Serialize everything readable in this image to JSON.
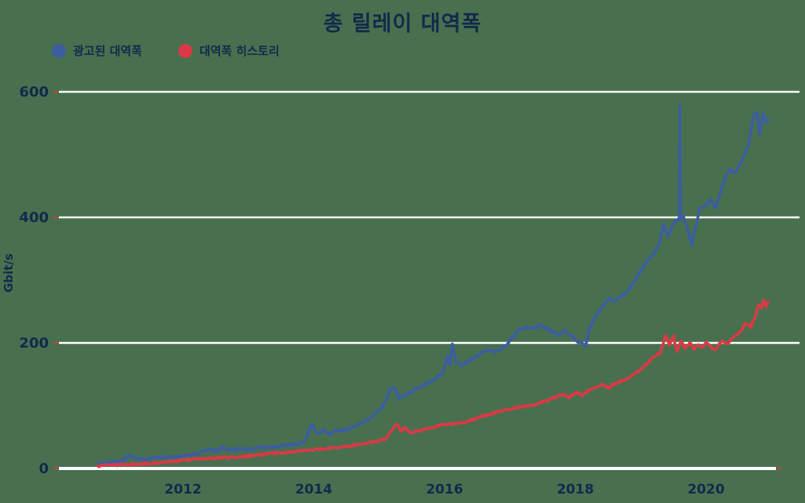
{
  "title": "총 릴레이 대역폭",
  "colors": {
    "background": "#48704f",
    "text": "#13294b",
    "grid": "#ffffff",
    "tick_dot": "#d43a42"
  },
  "chart_data": {
    "type": "line",
    "title": "총 릴레이 대역폭",
    "xlabel": "",
    "ylabel": "Gbit/s",
    "ylim": [
      0,
      600
    ],
    "xlim": [
      2010.1,
      2021.4
    ],
    "y_ticks": [
      0,
      200,
      400,
      600
    ],
    "x_ticks": [
      2012,
      2014,
      2016,
      2018,
      2020
    ],
    "grid": "horizontal white lines on green background",
    "legend_position": "top-left",
    "series": [
      {
        "name": "광고된 대역폭",
        "color": "#3c5da0",
        "points": [
          [
            2010.7,
            7
          ],
          [
            2010.85,
            9
          ],
          [
            2011.0,
            11
          ],
          [
            2011.1,
            14
          ],
          [
            2011.17,
            23
          ],
          [
            2011.25,
            17
          ],
          [
            2011.35,
            14
          ],
          [
            2011.5,
            16
          ],
          [
            2011.7,
            18
          ],
          [
            2011.85,
            19
          ],
          [
            2012.0,
            21
          ],
          [
            2012.15,
            23
          ],
          [
            2012.3,
            27
          ],
          [
            2012.4,
            30
          ],
          [
            2012.5,
            27
          ],
          [
            2012.6,
            33
          ],
          [
            2012.7,
            30
          ],
          [
            2012.85,
            31
          ],
          [
            2013.0,
            31
          ],
          [
            2013.2,
            33
          ],
          [
            2013.4,
            34
          ],
          [
            2013.6,
            37
          ],
          [
            2013.8,
            40
          ],
          [
            2013.88,
            46
          ],
          [
            2013.93,
            64
          ],
          [
            2013.98,
            69
          ],
          [
            2014.05,
            55
          ],
          [
            2014.15,
            60
          ],
          [
            2014.25,
            55
          ],
          [
            2014.35,
            60
          ],
          [
            2014.5,
            62
          ],
          [
            2014.65,
            68
          ],
          [
            2014.8,
            76
          ],
          [
            2014.95,
            88
          ],
          [
            2015.05,
            98
          ],
          [
            2015.15,
            122
          ],
          [
            2015.22,
            132
          ],
          [
            2015.3,
            112
          ],
          [
            2015.4,
            116
          ],
          [
            2015.55,
            126
          ],
          [
            2015.7,
            134
          ],
          [
            2015.85,
            142
          ],
          [
            2015.95,
            150
          ],
          [
            2016.0,
            158
          ],
          [
            2016.04,
            181
          ],
          [
            2016.08,
            165
          ],
          [
            2016.12,
            200
          ],
          [
            2016.17,
            170
          ],
          [
            2016.25,
            164
          ],
          [
            2016.35,
            170
          ],
          [
            2016.45,
            176
          ],
          [
            2016.55,
            183
          ],
          [
            2016.65,
            188
          ],
          [
            2016.75,
            185
          ],
          [
            2016.85,
            190
          ],
          [
            2016.95,
            196
          ],
          [
            2017.05,
            210
          ],
          [
            2017.15,
            222
          ],
          [
            2017.25,
            225
          ],
          [
            2017.35,
            222
          ],
          [
            2017.45,
            228
          ],
          [
            2017.55,
            224
          ],
          [
            2017.65,
            218
          ],
          [
            2017.75,
            212
          ],
          [
            2017.82,
            220
          ],
          [
            2017.9,
            214
          ],
          [
            2018.0,
            206
          ],
          [
            2018.1,
            199
          ],
          [
            2018.16,
            196
          ],
          [
            2018.22,
            225
          ],
          [
            2018.28,
            237
          ],
          [
            2018.35,
            248
          ],
          [
            2018.45,
            262
          ],
          [
            2018.52,
            270
          ],
          [
            2018.6,
            266
          ],
          [
            2018.68,
            273
          ],
          [
            2018.78,
            280
          ],
          [
            2018.9,
            298
          ],
          [
            2019.0,
            315
          ],
          [
            2019.1,
            330
          ],
          [
            2019.2,
            342
          ],
          [
            2019.28,
            358
          ],
          [
            2019.35,
            388
          ],
          [
            2019.42,
            370
          ],
          [
            2019.5,
            390
          ],
          [
            2019.56,
            398
          ],
          [
            2019.59,
            395
          ],
          [
            2019.6,
            578
          ],
          [
            2019.61,
            395
          ],
          [
            2019.65,
            404
          ],
          [
            2019.72,
            380
          ],
          [
            2019.78,
            357
          ],
          [
            2019.84,
            385
          ],
          [
            2019.9,
            412
          ],
          [
            2020.0,
            420
          ],
          [
            2020.08,
            428
          ],
          [
            2020.15,
            415
          ],
          [
            2020.25,
            452
          ],
          [
            2020.35,
            478
          ],
          [
            2020.45,
            470
          ],
          [
            2020.55,
            492
          ],
          [
            2020.65,
            515
          ],
          [
            2020.72,
            558
          ],
          [
            2020.78,
            568
          ],
          [
            2020.82,
            532
          ],
          [
            2020.87,
            565
          ],
          [
            2020.92,
            550
          ],
          [
            2020.95,
            557
          ]
        ]
      },
      {
        "name": "대역폭 히스토리",
        "color": "#d93a46",
        "points": [
          [
            2010.7,
            4
          ],
          [
            2010.9,
            5
          ],
          [
            2011.1,
            6
          ],
          [
            2011.3,
            7
          ],
          [
            2011.5,
            8
          ],
          [
            2011.7,
            10
          ],
          [
            2011.9,
            12
          ],
          [
            2012.0,
            13
          ],
          [
            2012.2,
            15
          ],
          [
            2012.4,
            16
          ],
          [
            2012.6,
            17
          ],
          [
            2012.8,
            18
          ],
          [
            2013.0,
            20
          ],
          [
            2013.2,
            22
          ],
          [
            2013.4,
            24
          ],
          [
            2013.6,
            26
          ],
          [
            2013.8,
            28
          ],
          [
            2014.0,
            30
          ],
          [
            2014.2,
            32
          ],
          [
            2014.4,
            34
          ],
          [
            2014.6,
            36
          ],
          [
            2014.8,
            40
          ],
          [
            2015.0,
            44
          ],
          [
            2015.1,
            48
          ],
          [
            2015.2,
            62
          ],
          [
            2015.27,
            70
          ],
          [
            2015.33,
            60
          ],
          [
            2015.4,
            66
          ],
          [
            2015.47,
            56
          ],
          [
            2015.6,
            60
          ],
          [
            2015.75,
            64
          ],
          [
            2015.9,
            68
          ],
          [
            2016.0,
            70
          ],
          [
            2016.15,
            72
          ],
          [
            2016.3,
            74
          ],
          [
            2016.45,
            78
          ],
          [
            2016.6,
            84
          ],
          [
            2016.75,
            88
          ],
          [
            2016.9,
            92
          ],
          [
            2017.05,
            96
          ],
          [
            2017.2,
            99
          ],
          [
            2017.35,
            101
          ],
          [
            2017.5,
            106
          ],
          [
            2017.65,
            112
          ],
          [
            2017.8,
            117
          ],
          [
            2017.9,
            114
          ],
          [
            2018.0,
            121
          ],
          [
            2018.1,
            117
          ],
          [
            2018.2,
            124
          ],
          [
            2018.3,
            128
          ],
          [
            2018.4,
            134
          ],
          [
            2018.5,
            128
          ],
          [
            2018.6,
            135
          ],
          [
            2018.7,
            139
          ],
          [
            2018.8,
            144
          ],
          [
            2018.9,
            150
          ],
          [
            2019.0,
            158
          ],
          [
            2019.1,
            168
          ],
          [
            2019.2,
            178
          ],
          [
            2019.3,
            184
          ],
          [
            2019.38,
            212
          ],
          [
            2019.44,
            196
          ],
          [
            2019.5,
            210
          ],
          [
            2019.56,
            186
          ],
          [
            2019.62,
            204
          ],
          [
            2019.68,
            190
          ],
          [
            2019.75,
            200
          ],
          [
            2019.82,
            190
          ],
          [
            2019.88,
            198
          ],
          [
            2019.94,
            192
          ],
          [
            2020.0,
            200
          ],
          [
            2020.08,
            193
          ],
          [
            2020.15,
            190
          ],
          [
            2020.25,
            205
          ],
          [
            2020.32,
            198
          ],
          [
            2020.4,
            208
          ],
          [
            2020.5,
            215
          ],
          [
            2020.6,
            230
          ],
          [
            2020.68,
            226
          ],
          [
            2020.75,
            240
          ],
          [
            2020.8,
            261
          ],
          [
            2020.85,
            255
          ],
          [
            2020.88,
            268
          ],
          [
            2020.92,
            258
          ],
          [
            2020.95,
            265
          ]
        ]
      }
    ]
  }
}
